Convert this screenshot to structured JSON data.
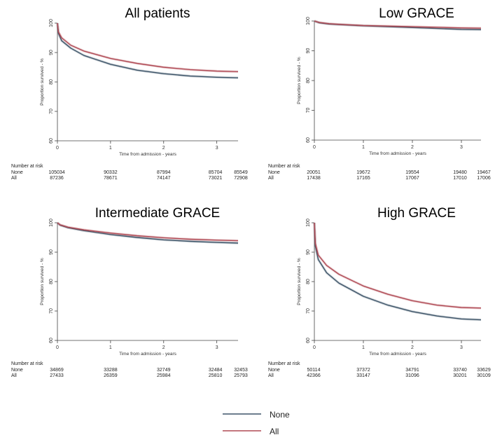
{
  "chart_data": [
    {
      "type": "line",
      "title": "All patients",
      "xlabel": "Time from admission - years",
      "ylabel": "Proportion survived - %",
      "xlim": [
        0,
        3.4
      ],
      "ylim": [
        60,
        100
      ],
      "xticks": [
        0,
        1,
        2,
        3
      ],
      "yticks": [
        60,
        70,
        80,
        90,
        100
      ],
      "grid": false,
      "series": [
        {
          "name": "None",
          "color": "#3d5468",
          "x": [
            0,
            0.02,
            0.08,
            0.25,
            0.5,
            1,
            1.5,
            2,
            2.5,
            3,
            3.4
          ],
          "y": [
            100,
            96.5,
            94,
            91.5,
            89,
            86,
            84,
            82.8,
            82,
            81.6,
            81.4
          ]
        },
        {
          "name": "All",
          "color": "#b04a55",
          "x": [
            0,
            0.02,
            0.08,
            0.25,
            0.5,
            1,
            1.5,
            2,
            2.5,
            3,
            3.4
          ],
          "y": [
            100,
            97,
            95,
            92.5,
            90.5,
            88,
            86.3,
            85,
            84.2,
            83.7,
            83.5
          ]
        }
      ],
      "risk_table": {
        "header": "Number at risk",
        "rows": [
          {
            "label": "None",
            "values": [
              "105034",
              "90332",
              "87994",
              "85704",
              "85549"
            ]
          },
          {
            "label": "All",
            "values": [
              "87236",
              "78671",
              "74147",
              "73021",
              "72908"
            ]
          }
        ]
      }
    },
    {
      "type": "line",
      "title": "Low GRACE",
      "xlabel": "Time from admission - years",
      "ylabel": "Proportion survived - %",
      "xlim": [
        0,
        3.4
      ],
      "ylim": [
        60,
        100
      ],
      "xticks": [
        0,
        1,
        2,
        3
      ],
      "yticks": [
        60,
        70,
        80,
        90,
        100
      ],
      "grid": false,
      "series": [
        {
          "name": "None",
          "color": "#3d5468",
          "x": [
            0,
            0.1,
            0.3,
            0.5,
            1,
            1.5,
            2,
            2.5,
            3,
            3.4
          ],
          "y": [
            100,
            99.4,
            99,
            98.8,
            98.4,
            98.1,
            97.8,
            97.5,
            97.2,
            97.1
          ]
        },
        {
          "name": "All",
          "color": "#b04a55",
          "x": [
            0,
            0.1,
            0.3,
            0.5,
            1,
            1.5,
            2,
            2.5,
            3,
            3.4
          ],
          "y": [
            100,
            99.5,
            99.1,
            98.9,
            98.5,
            98.3,
            98.1,
            97.9,
            97.7,
            97.6
          ]
        }
      ],
      "risk_table": {
        "header": "Number at risk",
        "rows": [
          {
            "label": "None",
            "values": [
              "20051",
              "19672",
              "19554",
              "19480",
              "19467"
            ]
          },
          {
            "label": "All",
            "values": [
              "17438",
              "17165",
              "17067",
              "17010",
              "17006"
            ]
          }
        ]
      }
    },
    {
      "type": "line",
      "title": "Intermediate GRACE",
      "xlabel": "Time from admission - years",
      "ylabel": "Proportion survived - %",
      "xlim": [
        0,
        3.4
      ],
      "ylim": [
        60,
        100
      ],
      "xticks": [
        0,
        1,
        2,
        3
      ],
      "yticks": [
        60,
        70,
        80,
        90,
        100
      ],
      "grid": false,
      "series": [
        {
          "name": "None",
          "color": "#3d5468",
          "x": [
            0,
            0.05,
            0.2,
            0.5,
            1,
            1.5,
            2,
            2.5,
            3,
            3.4
          ],
          "y": [
            100,
            99.2,
            98.3,
            97.3,
            96,
            95,
            94.2,
            93.7,
            93.3,
            93.1
          ]
        },
        {
          "name": "All",
          "color": "#b04a55",
          "x": [
            0,
            0.05,
            0.2,
            0.5,
            1,
            1.5,
            2,
            2.5,
            3,
            3.4
          ],
          "y": [
            100,
            99.3,
            98.5,
            97.6,
            96.5,
            95.6,
            94.9,
            94.4,
            94.1,
            93.9
          ]
        }
      ],
      "risk_table": {
        "header": "Number at risk",
        "rows": [
          {
            "label": "None",
            "values": [
              "34869",
              "33288",
              "32749",
              "32484",
              "32453"
            ]
          },
          {
            "label": "All",
            "values": [
              "27433",
              "26359",
              "25984",
              "25810",
              "25793"
            ]
          }
        ]
      }
    },
    {
      "type": "line",
      "title": "High GRACE",
      "xlabel": "Time from admission - years",
      "ylabel": "Proportion survived - %",
      "xlim": [
        0,
        3.4
      ],
      "ylim": [
        60,
        100
      ],
      "xticks": [
        0,
        1,
        2,
        3
      ],
      "yticks": [
        60,
        70,
        80,
        90,
        100
      ],
      "grid": false,
      "series": [
        {
          "name": "None",
          "color": "#3d5468",
          "x": [
            0,
            0.02,
            0.08,
            0.25,
            0.5,
            1,
            1.5,
            2,
            2.5,
            3,
            3.4
          ],
          "y": [
            100,
            92,
            87.5,
            83,
            79.5,
            75,
            72,
            69.8,
            68.3,
            67.3,
            67
          ]
        },
        {
          "name": "All",
          "color": "#b04a55",
          "x": [
            0,
            0.02,
            0.08,
            0.25,
            0.5,
            1,
            1.5,
            2,
            2.5,
            3,
            3.4
          ],
          "y": [
            100,
            93,
            89,
            85.5,
            82.5,
            78.5,
            75.7,
            73.5,
            72,
            71.2,
            71
          ]
        }
      ],
      "risk_table": {
        "header": "Number at risk",
        "rows": [
          {
            "label": "None",
            "values": [
              "50114",
              "37372",
              "34791",
              "33740",
              "33629"
            ]
          },
          {
            "label": "All",
            "values": [
              "42366",
              "33147",
              "31096",
              "30201",
              "30109"
            ]
          }
        ]
      }
    }
  ],
  "legend": {
    "position": "bottom-center",
    "items": [
      {
        "name": "None",
        "color": "#3d5468"
      },
      {
        "name": "All",
        "color": "#b04a55"
      }
    ]
  }
}
